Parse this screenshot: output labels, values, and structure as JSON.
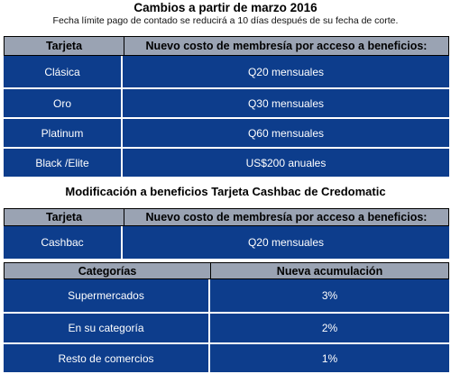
{
  "section1": {
    "title": "Cambios a partir de marzo 2016",
    "subtitle": "Fecha límite pago de contado se reducirá a 10 días después de su fecha de corte.",
    "headers": [
      "Tarjeta",
      "Nuevo costo de membresía por acceso a beneficios:"
    ],
    "rows": [
      {
        "card": "Clásica",
        "cost": "Q20 mensuales"
      },
      {
        "card": "Oro",
        "cost": "Q30 mensuales"
      },
      {
        "card": "Platinum",
        "cost": "Q60 mensuales"
      },
      {
        "card": "Black /Elite",
        "cost": "US$200 anuales"
      }
    ]
  },
  "section2": {
    "title": "Modificación a beneficios Tarjeta Cashbac de Credomatic",
    "headers": [
      "Tarjeta",
      "Nuevo costo de membresía por acceso a beneficios:"
    ],
    "rows": [
      {
        "card": "Cashbac",
        "cost": "Q20 mensuales"
      }
    ]
  },
  "section3": {
    "headers": [
      "Categorías",
      "Nueva acumulación"
    ],
    "rows": [
      {
        "category": "Supermercados",
        "value": "3%"
      },
      {
        "category": "En su categoría",
        "value": "2%"
      },
      {
        "category": "Resto de comercios",
        "value": "1%"
      }
    ]
  },
  "colors": {
    "cell_blue": "#0d3d8c",
    "header_gray": "#9aa3b3"
  }
}
